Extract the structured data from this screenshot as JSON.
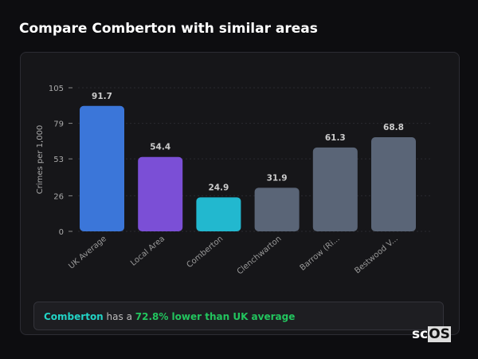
{
  "title": "Compare Comberton with similar areas",
  "chart_data": {
    "type": "bar",
    "categories": [
      "UK Average",
      "Local Area",
      "Comberton",
      "Clenchwarton",
      "Barrow (Ri...",
      "Bestwood V..."
    ],
    "values": [
      91.7,
      54.4,
      24.9,
      31.9,
      61.3,
      68.8
    ],
    "colors": [
      "#3b76d9",
      "#7b4fd6",
      "#22b8cf",
      "#5a6577",
      "#5a6577",
      "#5a6577"
    ],
    "ylabel": "Crimes per 1,000",
    "yticks": [
      0,
      26,
      53,
      79,
      105
    ],
    "ylim": [
      0,
      105
    ],
    "grid": true
  },
  "footer": {
    "area": "Comberton",
    "mid": " has a ",
    "highlight": "72.8% lower than UK average"
  },
  "logo": {
    "sc": "sc",
    "os": "OS"
  }
}
